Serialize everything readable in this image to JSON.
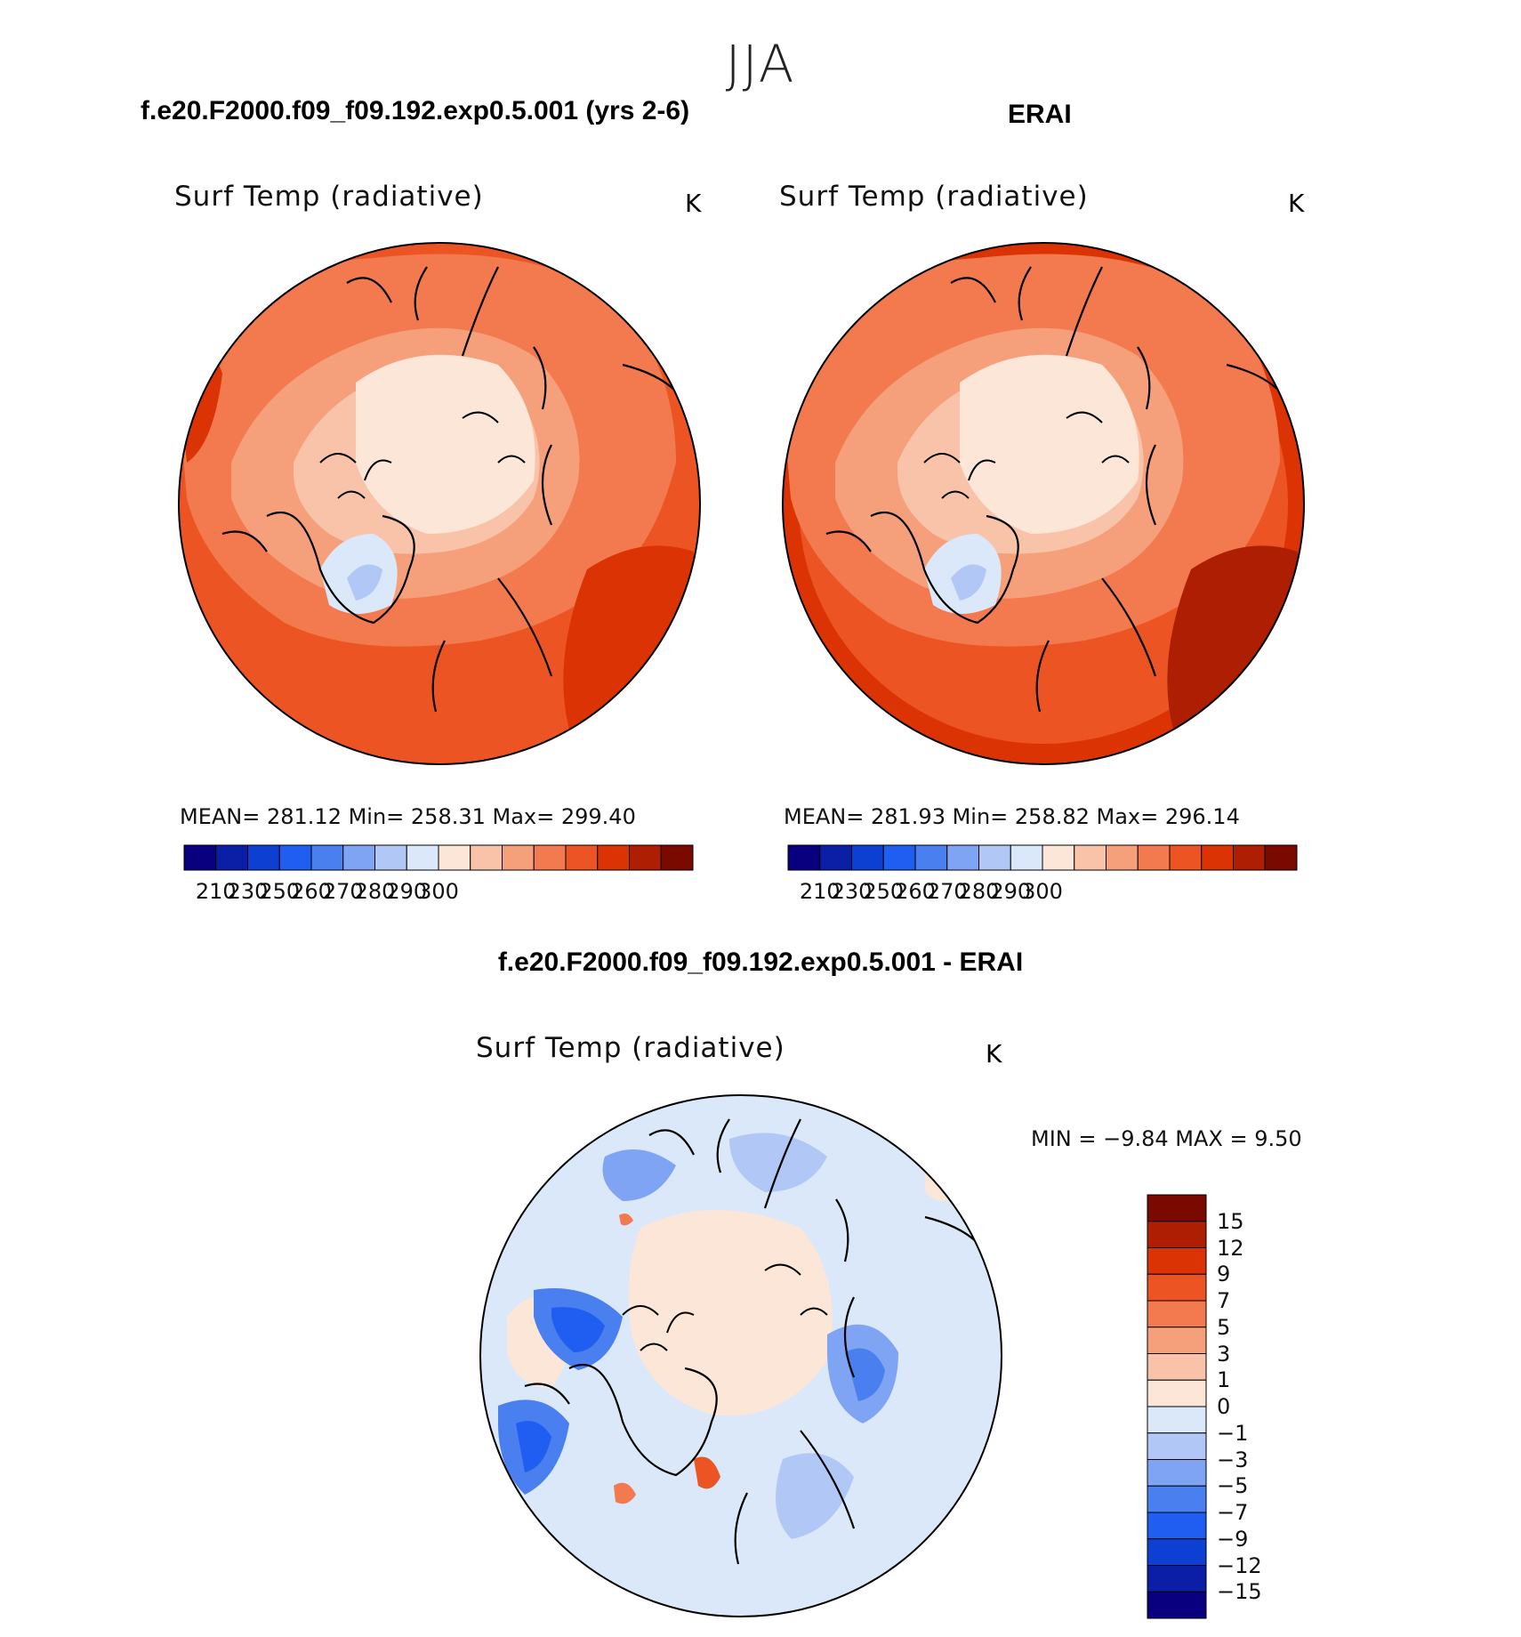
{
  "figure": {
    "season": "JJA"
  },
  "panels": [
    {
      "title": "f.e20.F2000.f09_f09.192.exp0.5.001 (yrs 2-6)",
      "variable": "Surf Temp (radiative)",
      "units": "K",
      "stats": "MEAN=  281.12   Min=  258.31    Max=  299.40",
      "colorbar_labels": [
        "210",
        "230",
        "250",
        "260",
        "270",
        "280",
        "290",
        "300"
      ]
    },
    {
      "title": "ERAI",
      "variable": "Surf Temp (radiative)",
      "units": "K",
      "stats": "MEAN=  281.93   Min=  258.82    Max=  296.14",
      "colorbar_labels": [
        "210",
        "230",
        "250",
        "260",
        "270",
        "280",
        "290",
        "300"
      ]
    },
    {
      "title": "f.e20.F2000.f09_f09.192.exp0.5.001 - ERAI",
      "variable": "Surf Temp (radiative)",
      "units": "K",
      "stats": "MIN =    −9.84  MAX =      9.50",
      "colorbar_labels": [
        "15",
        "12",
        "9",
        "7",
        "5",
        "3",
        "1",
        "0",
        "−1",
        "−3",
        "−5",
        "−7",
        "−9",
        "−12",
        "−15"
      ]
    }
  ],
  "colors": {
    "abs_scale": [
      "#08007f",
      "#0a1fa5",
      "#0e3fd3",
      "#1f5ef0",
      "#4a7fef",
      "#7fa4f3",
      "#b1c8f6",
      "#dae8fa",
      "#fce6d8",
      "#f9c3a9",
      "#f6a07b",
      "#f27a4e",
      "#ec5523",
      "#db3304",
      "#ad1e02",
      "#7a0a00"
    ],
    "diff_scale": [
      "#7a0a00",
      "#ad1e02",
      "#db3304",
      "#ec5523",
      "#f27a4e",
      "#f6a07b",
      "#f9c3a9",
      "#fce6d8",
      "#dae8fa",
      "#b1c8f6",
      "#7fa4f3",
      "#4a7fef",
      "#1f5ef0",
      "#0e3fd3",
      "#0a1fa5",
      "#08007f"
    ]
  }
}
